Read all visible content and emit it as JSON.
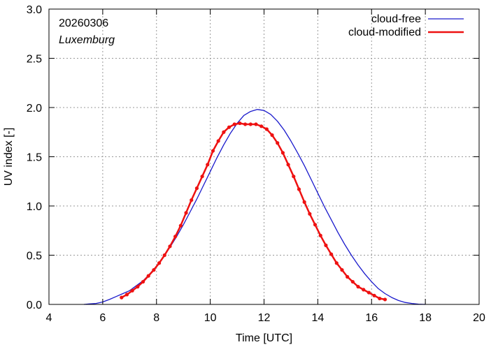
{
  "chart_data": {
    "type": "line",
    "xlabel": "Time  [UTC]",
    "ylabel": "UV index  [-]",
    "xlim": [
      4,
      20
    ],
    "ylim": [
      0,
      3.0
    ],
    "xticks": [
      "4",
      "6",
      "8",
      "10",
      "12",
      "14",
      "16",
      "18",
      "20"
    ],
    "yticks": [
      "0.0",
      "0.5",
      "1.0",
      "1.5",
      "2.0",
      "2.5",
      "3.0"
    ],
    "grid": true,
    "legend_position": "top-right",
    "annotations": {
      "date": "20260306",
      "location": "Luxemburg"
    },
    "colors": {
      "cloud_free": "#1a1acc",
      "cloud_modified": "#ee1111",
      "grid": "#999999"
    },
    "series": [
      {
        "name": "cloud-free",
        "style": "line",
        "x": [
          5.3,
          5.5,
          5.75,
          6.0,
          6.25,
          6.5,
          6.75,
          7.0,
          7.25,
          7.5,
          7.75,
          8.0,
          8.25,
          8.5,
          8.75,
          9.0,
          9.25,
          9.5,
          9.75,
          10.0,
          10.25,
          10.5,
          10.75,
          11.0,
          11.25,
          11.5,
          11.75,
          12.0,
          12.25,
          12.5,
          12.75,
          13.0,
          13.25,
          13.5,
          13.75,
          14.0,
          14.25,
          14.5,
          14.75,
          15.0,
          15.25,
          15.5,
          15.75,
          16.0,
          16.25,
          16.5,
          16.75,
          17.0,
          17.25,
          17.5,
          17.75,
          18.0
        ],
        "y": [
          0.0,
          0.005,
          0.01,
          0.025,
          0.05,
          0.08,
          0.11,
          0.14,
          0.19,
          0.24,
          0.31,
          0.39,
          0.48,
          0.58,
          0.69,
          0.81,
          0.94,
          1.07,
          1.21,
          1.35,
          1.49,
          1.62,
          1.74,
          1.84,
          1.92,
          1.96,
          1.98,
          1.97,
          1.93,
          1.86,
          1.77,
          1.66,
          1.54,
          1.41,
          1.27,
          1.13,
          0.99,
          0.86,
          0.73,
          0.61,
          0.5,
          0.4,
          0.31,
          0.23,
          0.16,
          0.11,
          0.07,
          0.04,
          0.02,
          0.01,
          0.003,
          0.0
        ]
      },
      {
        "name": "cloud-modified",
        "style": "line+points",
        "x": [
          6.7,
          6.9,
          7.1,
          7.3,
          7.5,
          7.7,
          7.9,
          8.1,
          8.3,
          8.5,
          8.7,
          8.9,
          9.1,
          9.3,
          9.5,
          9.7,
          9.9,
          10.1,
          10.3,
          10.5,
          10.7,
          10.9,
          11.1,
          11.3,
          11.5,
          11.7,
          11.9,
          12.1,
          12.3,
          12.5,
          12.7,
          12.9,
          13.1,
          13.3,
          13.5,
          13.7,
          13.9,
          14.1,
          14.3,
          14.5,
          14.7,
          14.9,
          15.1,
          15.3,
          15.5,
          15.7,
          15.9,
          16.1,
          16.3,
          16.5
        ],
        "y": [
          0.07,
          0.1,
          0.14,
          0.18,
          0.23,
          0.29,
          0.35,
          0.42,
          0.5,
          0.59,
          0.69,
          0.8,
          0.93,
          1.06,
          1.18,
          1.3,
          1.42,
          1.56,
          1.66,
          1.75,
          1.8,
          1.83,
          1.84,
          1.83,
          1.83,
          1.83,
          1.81,
          1.78,
          1.72,
          1.64,
          1.54,
          1.42,
          1.3,
          1.17,
          1.04,
          0.92,
          0.81,
          0.7,
          0.6,
          0.51,
          0.42,
          0.35,
          0.28,
          0.23,
          0.18,
          0.15,
          0.12,
          0.09,
          0.06,
          0.05
        ]
      }
    ]
  }
}
